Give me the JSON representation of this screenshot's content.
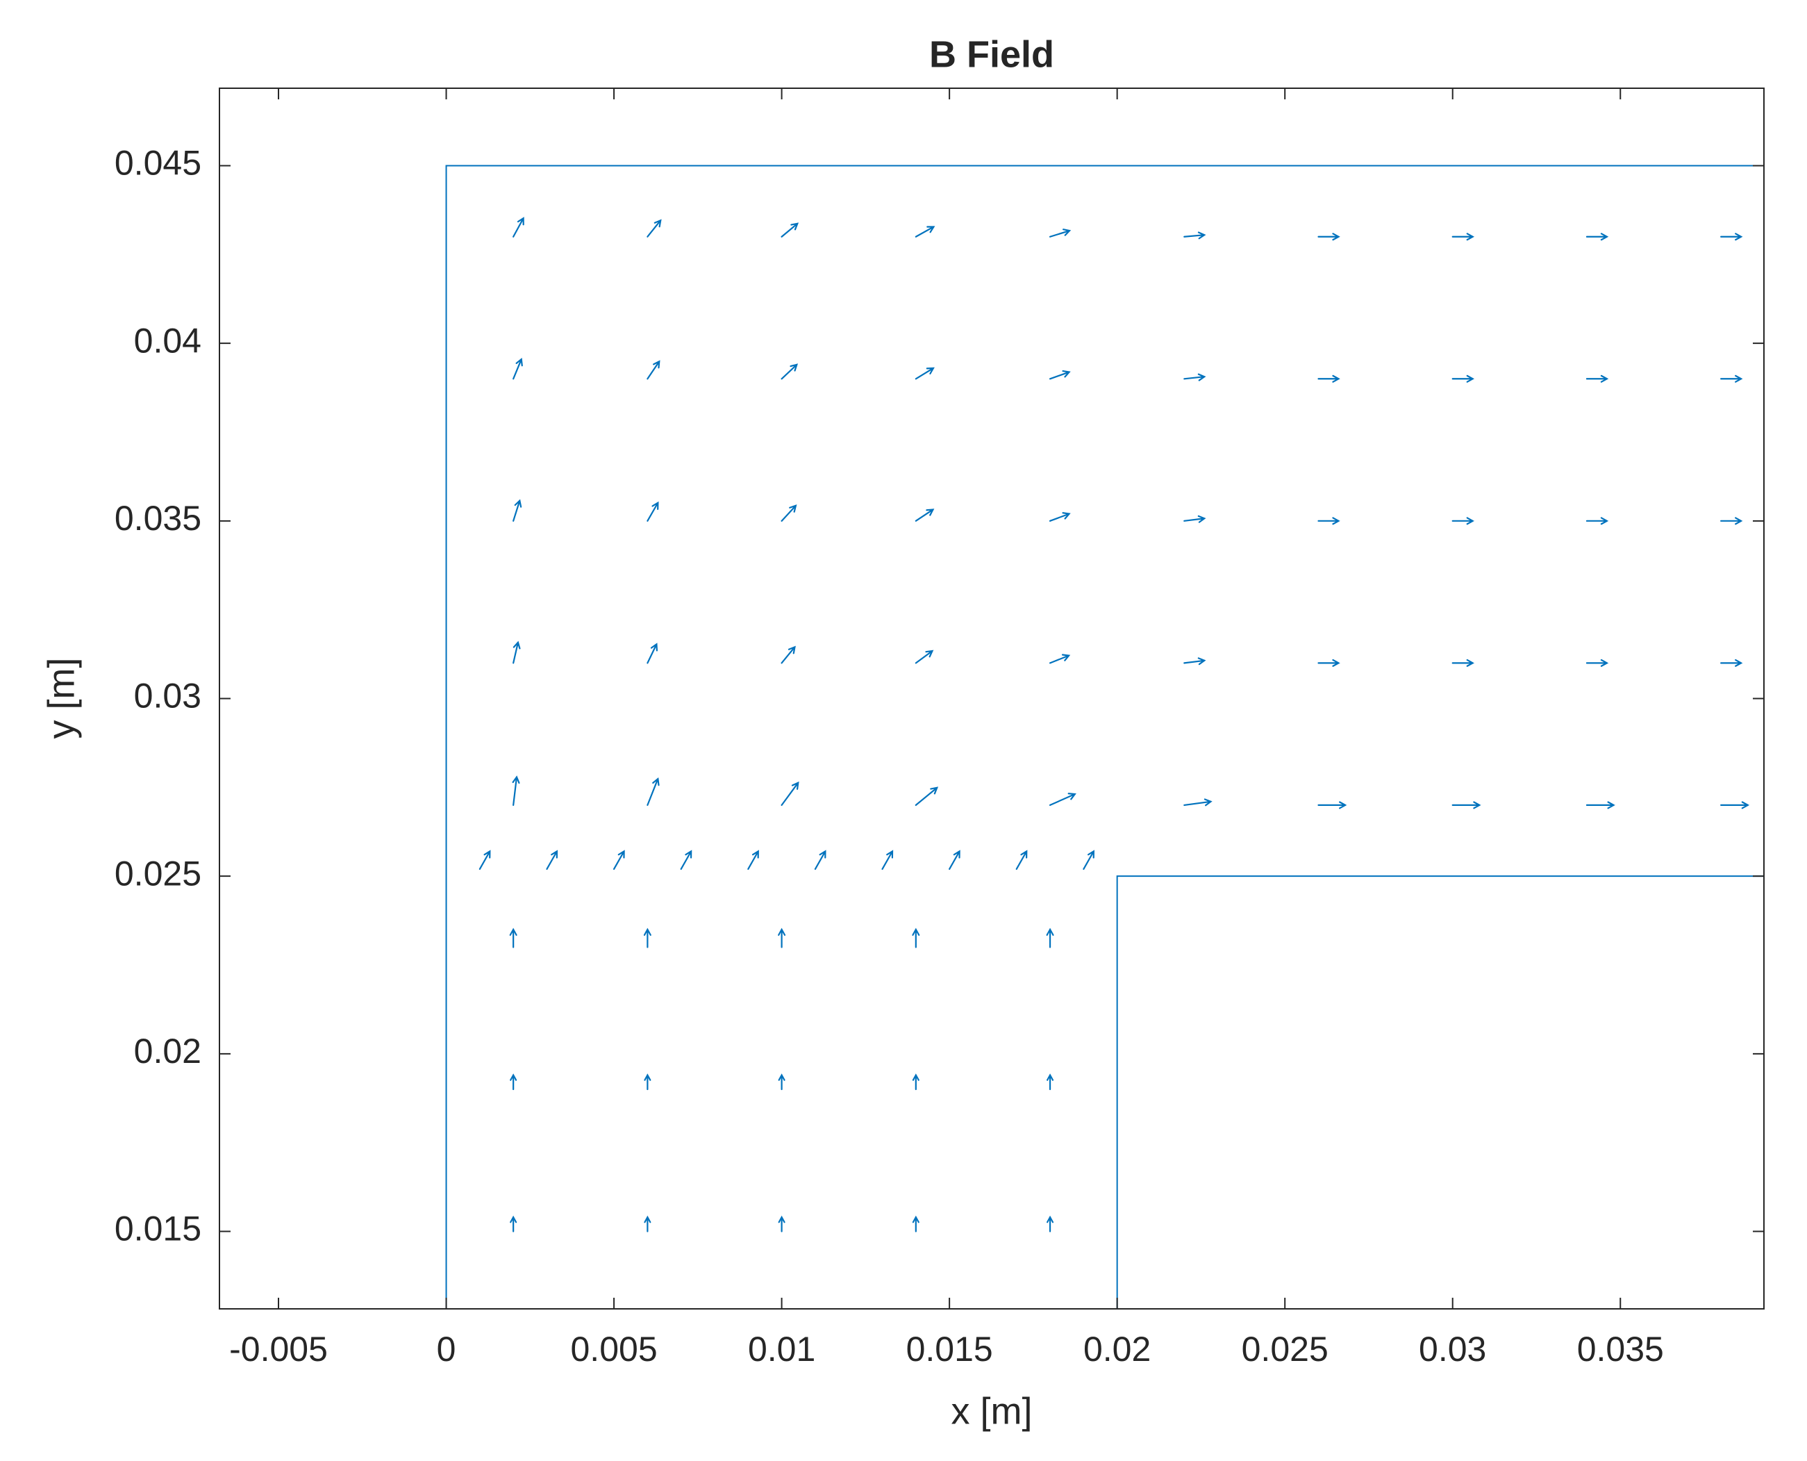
{
  "chart_data": {
    "type": "quiver",
    "title": "B Field",
    "xlabel": "x [m]",
    "ylabel": "y [m]",
    "color": "#0072bd",
    "xlim": [
      -0.00676,
      0.03928
    ],
    "ylim": [
      0.01282,
      0.04718
    ],
    "xticks": [
      -0.005,
      0,
      0.005,
      0.01,
      0.015,
      0.02,
      0.025,
      0.03,
      0.035
    ],
    "yticks": [
      0.015,
      0.02,
      0.025,
      0.03,
      0.035,
      0.04,
      0.045
    ],
    "boundary": {
      "x": [
        0,
        0,
        0.04,
        null,
        0.02,
        0.02,
        0.04
      ],
      "y": [
        0.01,
        0.045,
        0.045,
        null,
        0.01,
        0.025,
        0.025
      ]
    },
    "x": [
      0.002,
      0.006,
      0.01,
      0.014,
      0.018,
      0.022,
      0.026,
      0.03,
      0.034,
      0.038,
      0.002,
      0.006,
      0.01,
      0.014,
      0.018,
      0.022,
      0.026,
      0.03,
      0.034,
      0.038,
      0.002,
      0.006,
      0.01,
      0.014,
      0.018,
      0.022,
      0.026,
      0.03,
      0.034,
      0.038,
      0.002,
      0.006,
      0.01,
      0.014,
      0.018,
      0.022,
      0.026,
      0.03,
      0.034,
      0.038,
      0.002,
      0.006,
      0.01,
      0.014,
      0.018,
      0.022,
      0.026,
      0.03,
      0.034,
      0.038,
      0.002,
      0.006,
      0.01,
      0.014,
      0.018,
      0.002,
      0.006,
      0.01,
      0.014,
      0.018,
      0.002,
      0.006,
      0.01,
      0.014,
      0.018,
      0.001,
      0.003,
      0.005,
      0.007,
      0.009,
      0.011,
      0.013,
      0.015,
      0.017,
      0.019
    ],
    "y": [
      0.027,
      0.027,
      0.027,
      0.027,
      0.027,
      0.027,
      0.027,
      0.027,
      0.027,
      0.027,
      0.031,
      0.031,
      0.031,
      0.031,
      0.031,
      0.031,
      0.031,
      0.031,
      0.031,
      0.031,
      0.035,
      0.035,
      0.035,
      0.035,
      0.035,
      0.035,
      0.035,
      0.035,
      0.035,
      0.035,
      0.039,
      0.039,
      0.039,
      0.039,
      0.039,
      0.039,
      0.039,
      0.039,
      0.039,
      0.039,
      0.043,
      0.043,
      0.043,
      0.043,
      0.043,
      0.043,
      0.043,
      0.043,
      0.043,
      0.043,
      0.015,
      0.015,
      0.015,
      0.015,
      0.015,
      0.019,
      0.019,
      0.019,
      0.019,
      0.019,
      0.023,
      0.023,
      0.023,
      0.023,
      0.023,
      0.0252,
      0.0252,
      0.0252,
      0.0252,
      0.0252,
      0.0252,
      0.0252,
      0.0252,
      0.0252,
      0.0252
    ],
    "u": [
      0.0001,
      0.00031,
      0.00049,
      0.00063,
      0.00074,
      0.00079,
      0.0008,
      0.0008,
      0.0008,
      0.0008,
      0.00014,
      0.00027,
      0.00039,
      0.00049,
      0.00056,
      0.0006,
      0.0006,
      0.0006,
      0.0006,
      0.0006,
      0.00019,
      0.00031,
      0.00042,
      0.00051,
      0.00057,
      0.0006,
      0.0006,
      0.0006,
      0.0006,
      0.0006,
      0.00024,
      0.00035,
      0.00045,
      0.00052,
      0.00057,
      0.0006,
      0.0006,
      0.0006,
      0.0006,
      0.0006,
      0.0003,
      0.00039,
      0.00047,
      0.00053,
      0.00058,
      0.0006,
      0.0006,
      0.0006,
      0.0006,
      0.0006,
      0,
      0,
      0,
      0,
      0,
      0,
      0,
      0,
      0,
      0,
      0,
      0,
      0,
      0,
      0,
      0.0003,
      0.0003,
      0.0003,
      0.0003,
      0.0003,
      0.0003,
      0.0003,
      0.0003,
      0.0003,
      0.0003
    ],
    "v": [
      0.00079,
      0.00074,
      0.00063,
      0.00049,
      0.00031,
      0.0001,
      0,
      0,
      0,
      0,
      0.00058,
      0.00053,
      0.00045,
      0.00034,
      0.00021,
      7e-05,
      0,
      0,
      0,
      0,
      0.00057,
      0.00051,
      0.00043,
      0.00032,
      0.0002,
      7e-05,
      0,
      0,
      0,
      0,
      0.00055,
      0.00049,
      0.0004,
      0.0003,
      0.00019,
      6e-05,
      0,
      0,
      0,
      0,
      0.00052,
      0.00046,
      0.00037,
      0.00028,
      0.00017,
      5e-05,
      0,
      0,
      0,
      0,
      0.0004,
      0.0004,
      0.0004,
      0.0004,
      0.0004,
      0.0004,
      0.0004,
      0.0004,
      0.0004,
      0.0004,
      0.0005,
      0.0005,
      0.0005,
      0.0005,
      0.0005,
      0.0005,
      0.0005,
      0.0005,
      0.0005,
      0.0005,
      0.0005,
      0.0005,
      0.0005,
      0.0005,
      0.0005
    ]
  }
}
